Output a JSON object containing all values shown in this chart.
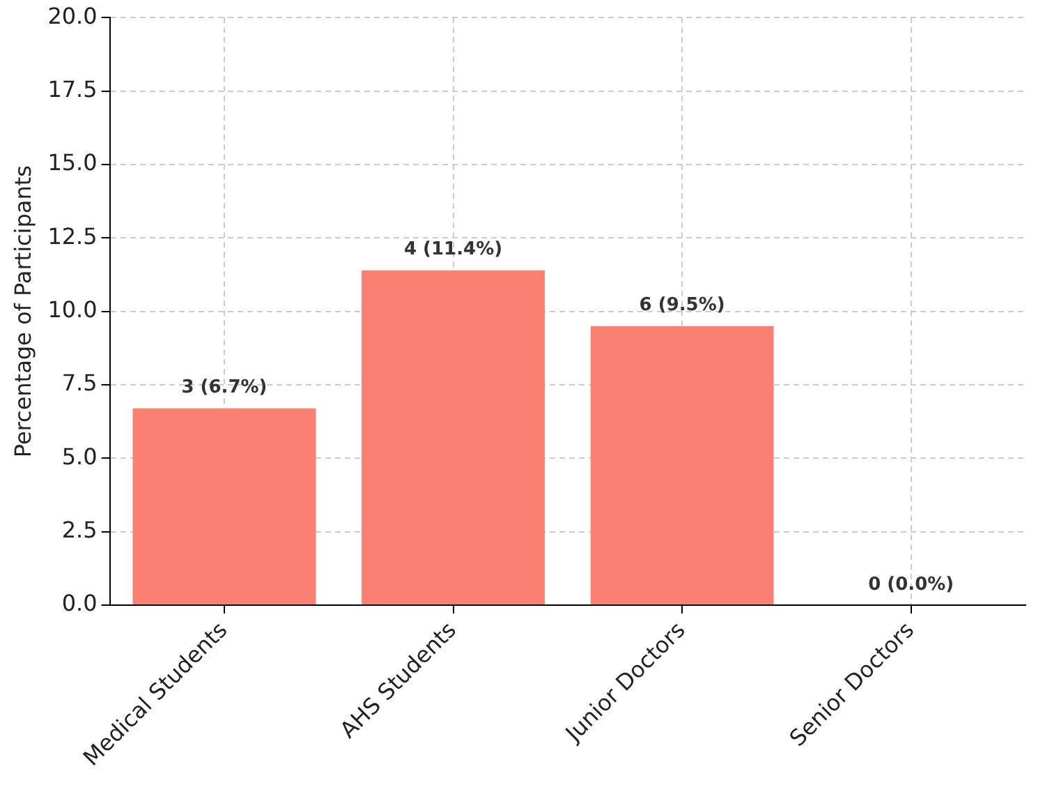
{
  "chart_data": {
    "type": "bar",
    "ylabel": "Percentage of Participants",
    "categories": [
      "Medical Students",
      "AHS Students",
      "Junior Doctors",
      "Senior Doctors"
    ],
    "values": [
      6.7,
      11.4,
      9.5,
      0.0
    ],
    "value_labels": [
      "3 (6.7%)",
      "4 (11.4%)",
      "6 (9.5%)",
      "0 (0.0%)"
    ],
    "color": "#fa8072",
    "ylim": [
      0,
      20
    ],
    "yticks": [
      {
        "value": 0,
        "label": "0.0"
      },
      {
        "value": 2.5,
        "label": "2.5"
      },
      {
        "value": 5,
        "label": "5.0"
      },
      {
        "value": 7.5,
        "label": "7.5"
      },
      {
        "value": 10,
        "label": "10.0"
      },
      {
        "value": 12.5,
        "label": "12.5"
      },
      {
        "value": 15,
        "label": "15.0"
      },
      {
        "value": 17.5,
        "label": "17.5"
      },
      {
        "value": 20,
        "label": "20.0"
      }
    ],
    "grid": true
  }
}
